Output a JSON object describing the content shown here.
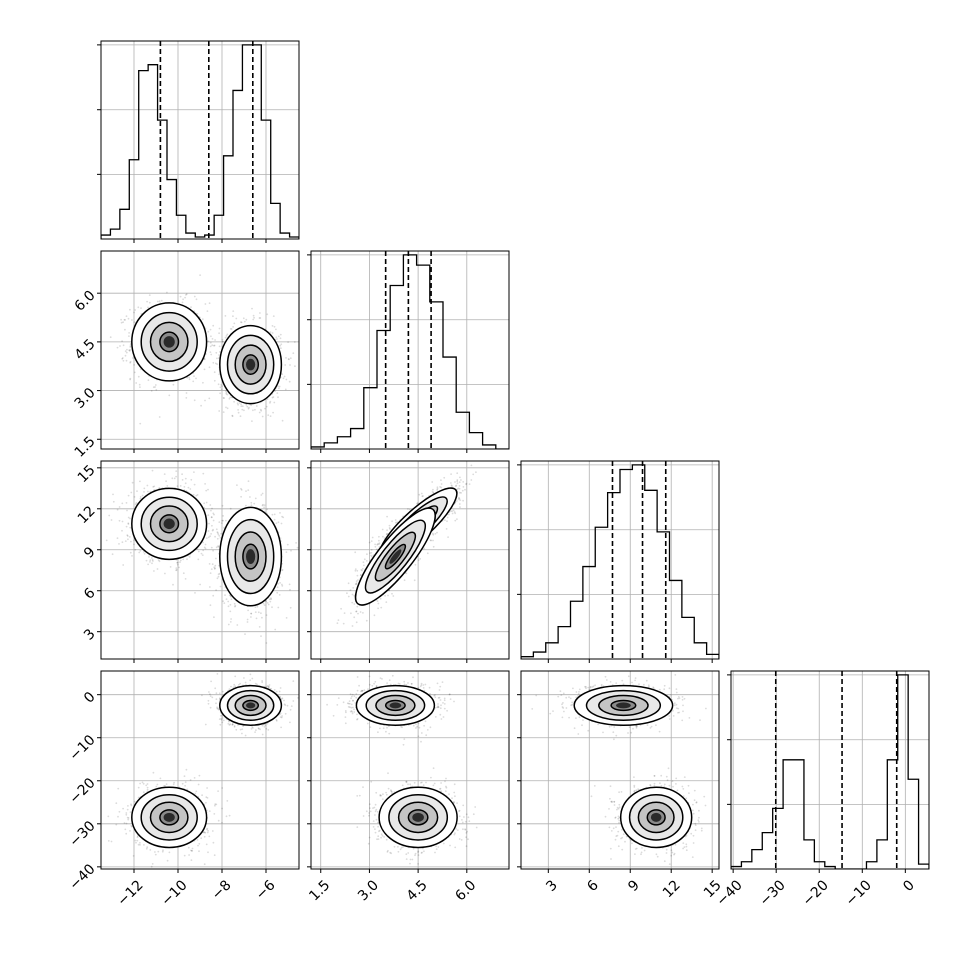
{
  "chart_data": {
    "type": "corner",
    "parameters": [
      {
        "ticks": [
          -12,
          -10,
          -8,
          -6
        ],
        "tick_labels": [
          "−12",
          "−10",
          "−8",
          "−6"
        ],
        "range": [
          -13.5,
          -4.5
        ]
      },
      {
        "ticks": [
          1.5,
          3.0,
          4.5,
          6.0
        ],
        "tick_labels": [
          "1.5",
          "3.0",
          "4.5",
          "6.0"
        ],
        "range": [
          1.2,
          7.3
        ]
      },
      {
        "ticks": [
          3,
          6,
          9,
          12,
          15
        ],
        "tick_labels": [
          "3",
          "6",
          "9",
          "12",
          "15"
        ],
        "range": [
          1.0,
          15.5
        ]
      },
      {
        "ticks": [
          -40,
          -30,
          -20,
          -10,
          0
        ],
        "tick_labels": [
          "−40",
          "−30",
          "−20",
          "−10",
          "0"
        ],
        "range": [
          -40.5,
          5.5
        ]
      }
    ],
    "diagonal": [
      {
        "bin_edges_range": [
          -13.5,
          -4.5
        ],
        "counts": [
          2,
          5,
          15,
          40,
          85,
          88,
          60,
          30,
          12,
          3,
          1,
          2,
          12,
          42,
          75,
          98,
          98,
          60,
          18,
          3,
          1
        ],
        "quantiles": [
          -10.8,
          -8.6,
          -6.6
        ]
      },
      {
        "bin_edges_range": [
          1.2,
          7.3
        ],
        "counts": [
          1,
          3,
          6,
          10,
          30,
          58,
          80,
          95,
          90,
          72,
          45,
          18,
          8,
          2,
          0
        ],
        "quantiles": [
          3.5,
          4.2,
          4.9
        ]
      },
      {
        "bin_edges_range": [
          1.0,
          15.5
        ],
        "counts": [
          1,
          3,
          7,
          14,
          25,
          40,
          57,
          72,
          82,
          84,
          73,
          55,
          34,
          18,
          7,
          2
        ],
        "quantiles": [
          7.7,
          9.9,
          11.6
        ]
      },
      {
        "bin_edges_range": [
          -40.5,
          5.5
        ],
        "counts": [
          1,
          3,
          8,
          15,
          25,
          45,
          45,
          12,
          3,
          1,
          0,
          0,
          0,
          3,
          12,
          45,
          80,
          37,
          2
        ],
        "quantiles": [
          -30.1,
          -14.7,
          -2.0
        ]
      }
    ],
    "modes": [
      {
        "means": [
          -10.4,
          4.5,
          10.9,
          -28.5
        ],
        "sd": [
          0.85,
          0.6,
          1.3,
          3.5
        ]
      },
      {
        "means": [
          -6.7,
          3.8,
          8.5,
          -2.5
        ],
        "sd": [
          0.7,
          0.6,
          1.8,
          2.3
        ]
      }
    ],
    "pair_correlation": {
      "1-2": 0.85
    },
    "contour_levels": [
      0.5,
      1.0,
      1.5,
      2.0
    ],
    "grid": true,
    "quantile_line_style": "dashed"
  }
}
